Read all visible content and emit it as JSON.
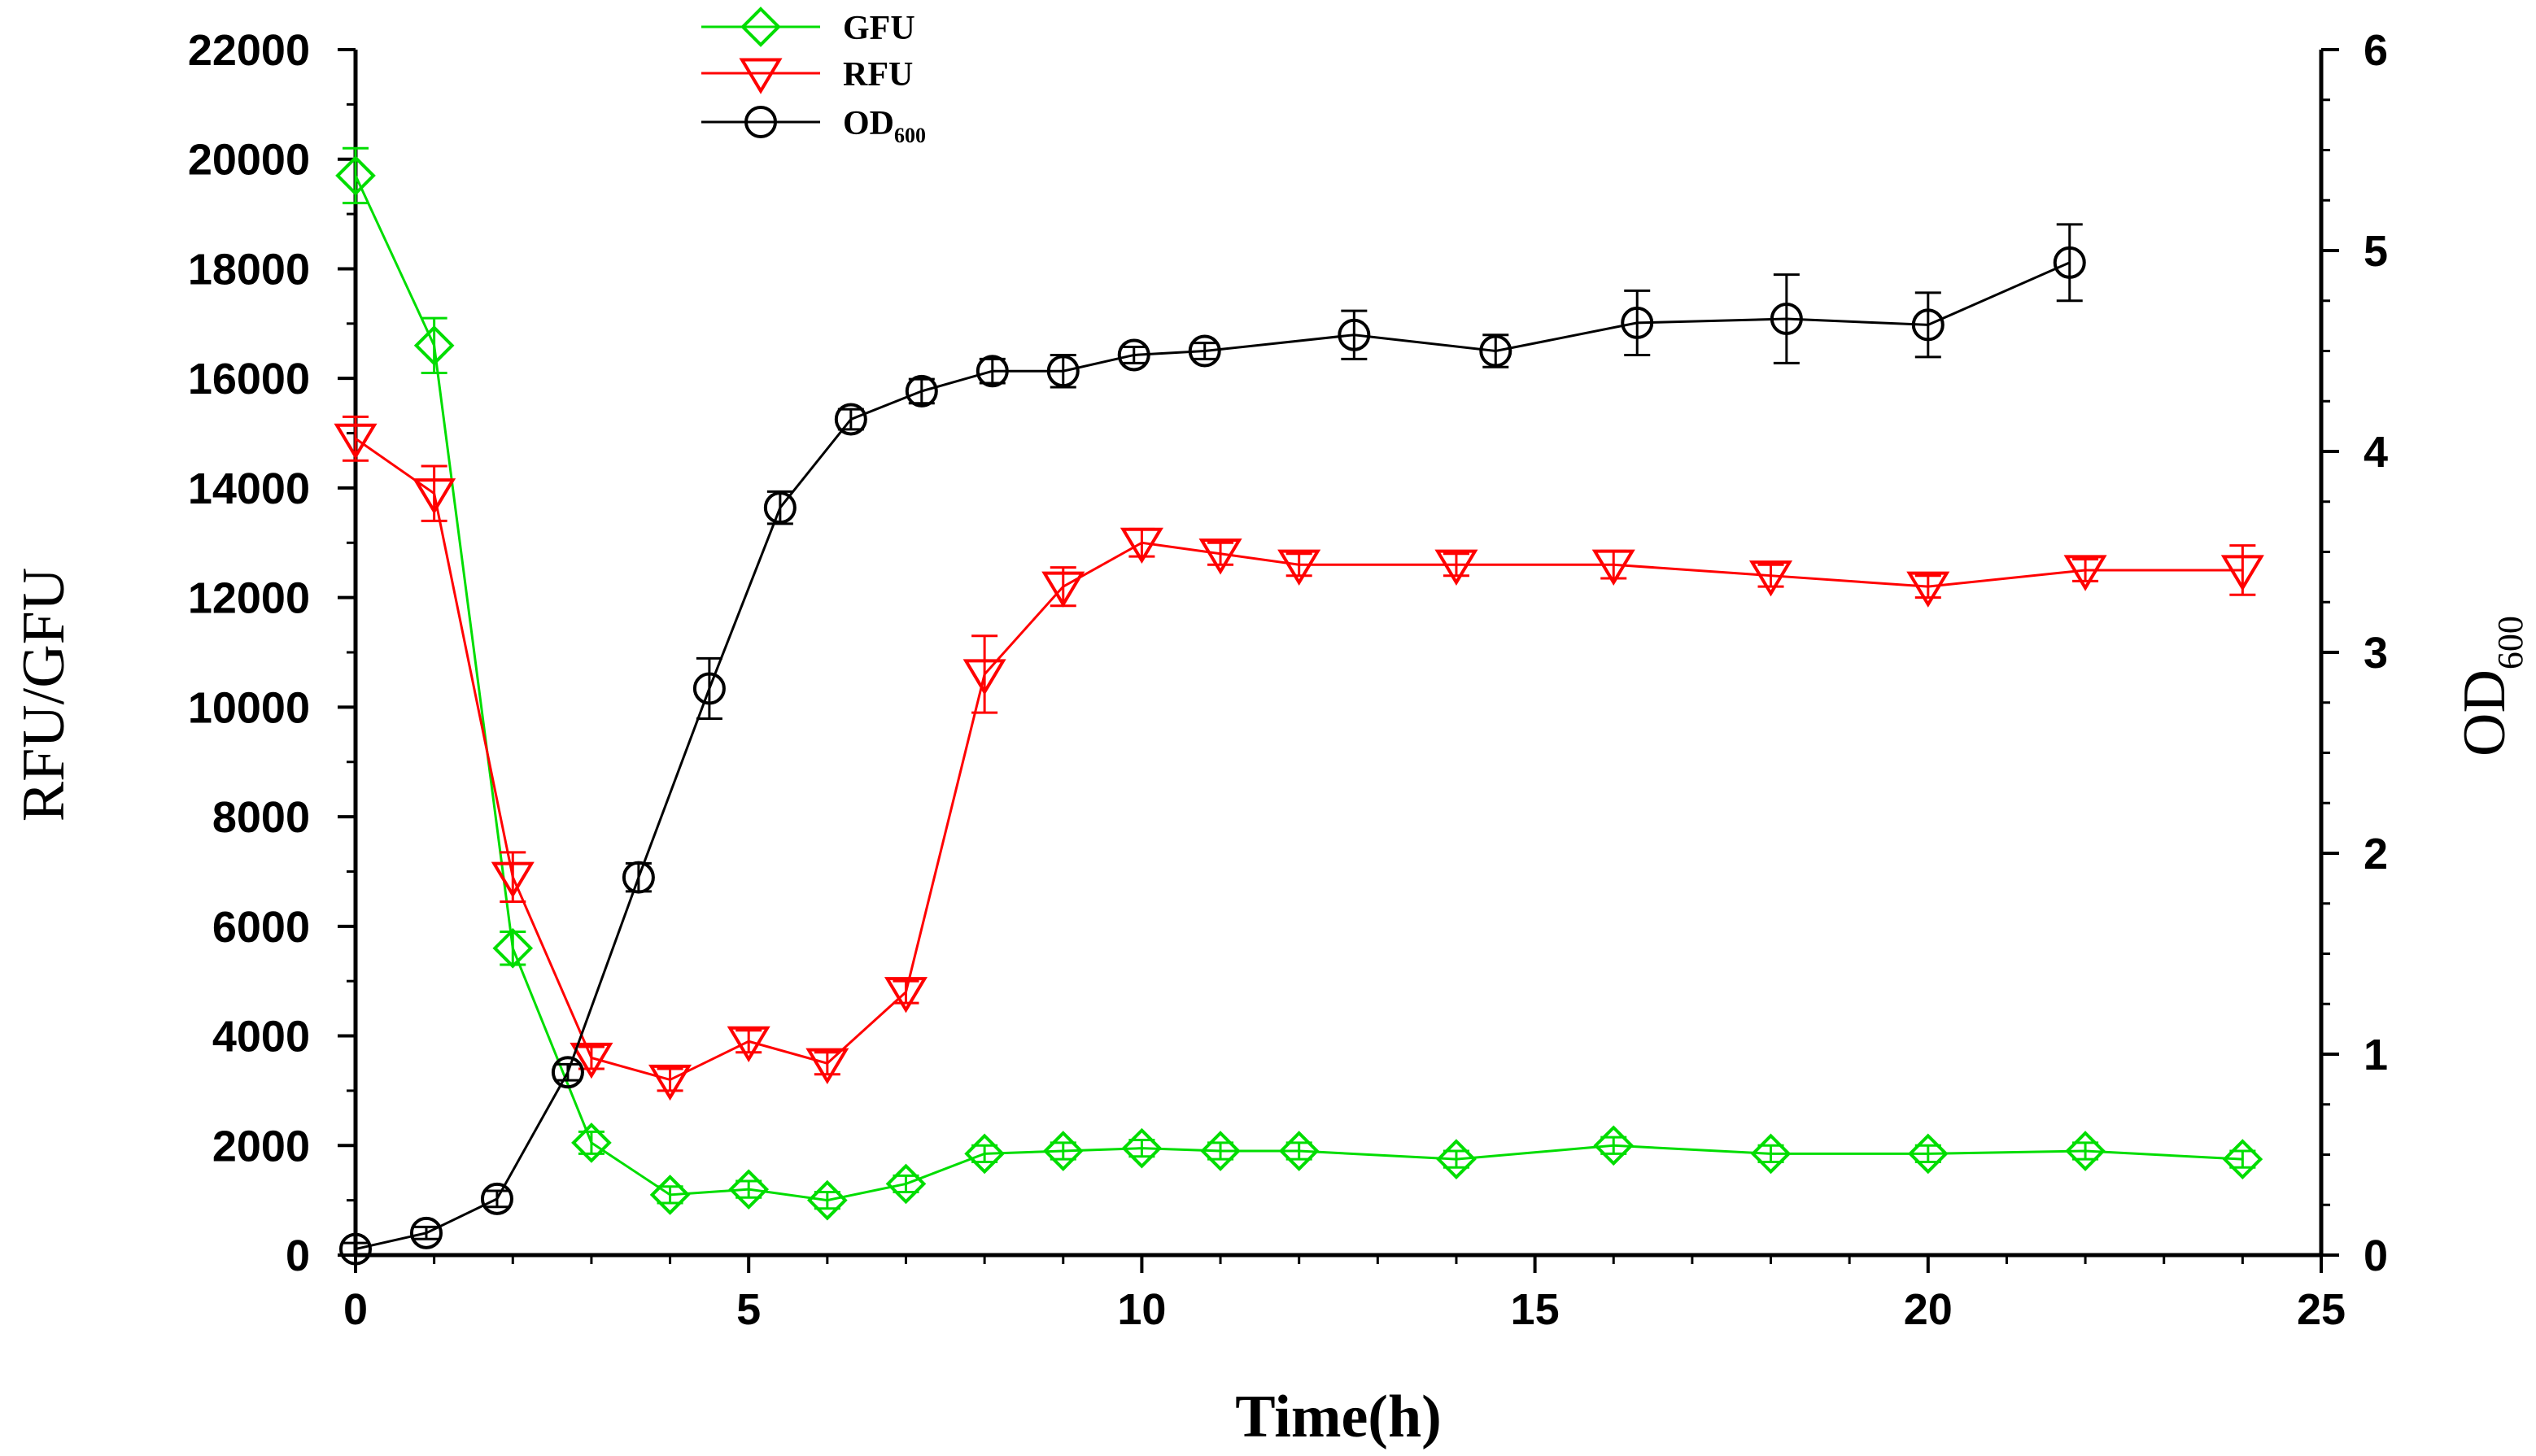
{
  "chart_data": {
    "type": "line",
    "x_label": "Time(h)",
    "y_left_label": "RFU/GFU",
    "y_right_label": "OD",
    "y_right_label_sub": "600",
    "x_range": [
      0,
      25
    ],
    "y_left_range": [
      0,
      22000
    ],
    "y_right_range": [
      0,
      6
    ],
    "x_ticks": [
      0,
      5,
      10,
      15,
      20,
      25
    ],
    "y_left_ticks": [
      0,
      2000,
      4000,
      6000,
      8000,
      10000,
      12000,
      14000,
      16000,
      18000,
      20000,
      22000
    ],
    "y_right_ticks": [
      0,
      1,
      2,
      3,
      4,
      5,
      6
    ],
    "x_tick_labels": [
      "0",
      "5",
      "10",
      "15",
      "20",
      "25"
    ],
    "y_left_tick_labels": [
      "0",
      "2000",
      "4000",
      "6000",
      "8000",
      "10000",
      "12000",
      "14000",
      "16000",
      "18000",
      "20000",
      "22000"
    ],
    "y_right_tick_labels": [
      "0",
      "1",
      "2",
      "3",
      "4",
      "5",
      "6"
    ],
    "legend_position": "top-left",
    "series": [
      {
        "name": "GFU",
        "axis": "left",
        "color": "#00dd00",
        "marker": "diamond",
        "x": [
          0,
          1,
          2,
          3,
          4,
          5,
          6,
          7,
          8,
          9,
          10,
          11,
          12,
          14,
          16,
          18,
          20,
          22,
          24
        ],
        "y": [
          19700,
          16600,
          5600,
          2050,
          1100,
          1200,
          1000,
          1300,
          1850,
          1900,
          1950,
          1900,
          1900,
          1750,
          2000,
          1850,
          1850,
          1900,
          1750
        ],
        "err": [
          500,
          500,
          300,
          200,
          150,
          150,
          150,
          150,
          150,
          150,
          150,
          150,
          150,
          150,
          150,
          150,
          150,
          150,
          150
        ]
      },
      {
        "name": "RFU",
        "axis": "left",
        "color": "#ff0000",
        "marker": "triangle-down",
        "x": [
          0,
          1,
          2,
          3,
          4,
          5,
          6,
          7,
          8,
          9,
          10,
          11,
          12,
          14,
          16,
          18,
          20,
          22,
          24
        ],
        "y": [
          14900,
          13900,
          6900,
          3600,
          3200,
          3900,
          3500,
          4800,
          10600,
          12200,
          13000,
          12800,
          12600,
          12600,
          12600,
          12400,
          12200,
          12500,
          12500
        ],
        "err": [
          400,
          500,
          450,
          200,
          200,
          200,
          200,
          200,
          700,
          350,
          250,
          200,
          200,
          200,
          250,
          200,
          200,
          200,
          450
        ]
      },
      {
        "name": "OD",
        "name_sub": "600",
        "axis": "right",
        "color": "#000000",
        "marker": "circle",
        "x": [
          0,
          0.9,
          1.8,
          2.7,
          3.6,
          4.5,
          5.4,
          6.3,
          7.2,
          8.1,
          9.0,
          9.9,
          10.8,
          12.7,
          14.5,
          16.3,
          18.2,
          20.0,
          21.8
        ],
        "y": [
          0.03,
          0.11,
          0.28,
          0.91,
          1.88,
          2.82,
          3.72,
          4.16,
          4.3,
          4.4,
          4.4,
          4.48,
          4.5,
          4.58,
          4.5,
          4.64,
          4.66,
          4.63,
          4.94
        ],
        "err": [
          0.03,
          0.03,
          0.04,
          0.04,
          0.07,
          0.15,
          0.08,
          0.05,
          0.06,
          0.06,
          0.08,
          0.04,
          0.04,
          0.12,
          0.08,
          0.16,
          0.22,
          0.16,
          0.19
        ]
      }
    ]
  }
}
